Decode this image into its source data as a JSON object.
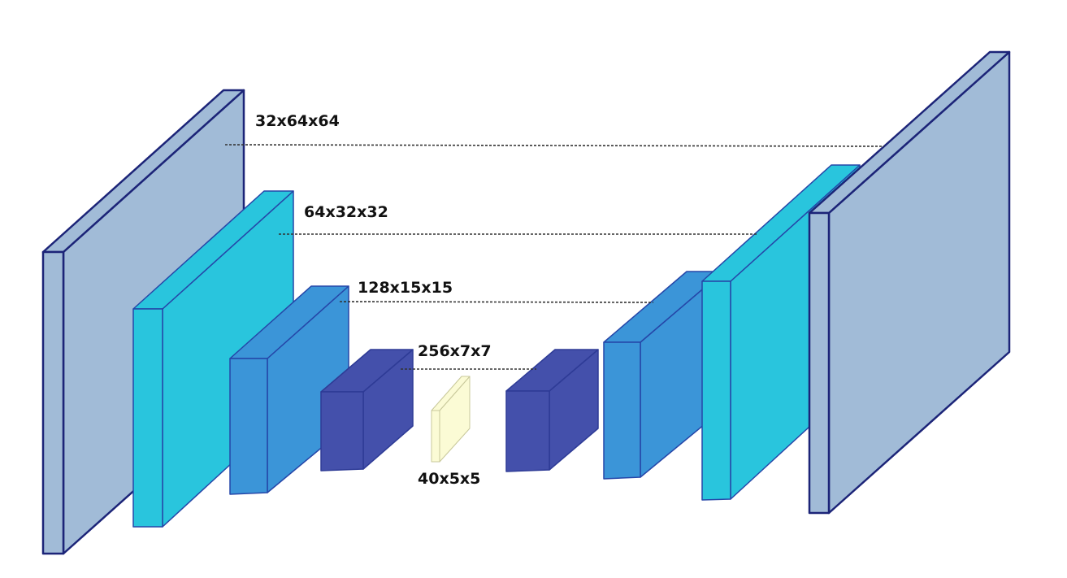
{
  "colors": {
    "layer_32": "#a1bbd7",
    "layer_64": "#29c5dd",
    "layer_128": "#3b95d8",
    "layer_256": "#4450ab",
    "bottleneck": "#fbfbd5",
    "outline": "#1c2478",
    "outline_bottleneck": "#c8c89a"
  },
  "labels": {
    "enc_32": "32x64x64",
    "enc_64": "64x32x32",
    "enc_128": "128x15x15",
    "enc_256": "256x7x7",
    "bottleneck": "40x5x5"
  }
}
